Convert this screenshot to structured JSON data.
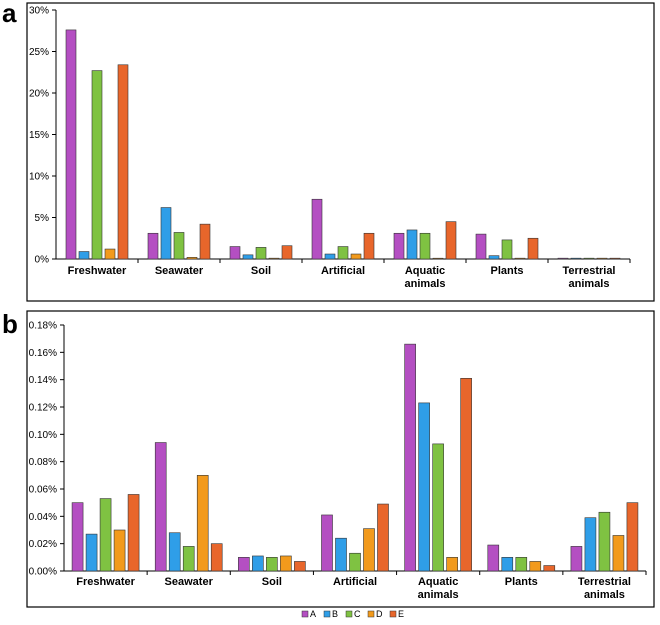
{
  "chart_data": [
    {
      "panel": "a",
      "type": "bar",
      "categories": [
        [
          "Freshwater"
        ],
        [
          "Seawater"
        ],
        [
          "Soil"
        ],
        [
          "Artificial"
        ],
        [
          "Aquatic",
          "animals"
        ],
        [
          "Plants"
        ],
        [
          "Terrestrial",
          "animals"
        ]
      ],
      "series": [
        {
          "name": "A",
          "values": [
            27.6,
            3.1,
            1.5,
            7.2,
            3.1,
            3.0,
            0.1
          ]
        },
        {
          "name": "B",
          "values": [
            0.9,
            6.2,
            0.5,
            0.6,
            3.5,
            0.4,
            0.1
          ]
        },
        {
          "name": "C",
          "values": [
            22.7,
            3.2,
            1.4,
            1.5,
            3.1,
            2.3,
            0.1
          ]
        },
        {
          "name": "D",
          "values": [
            1.2,
            0.2,
            0.1,
            0.6,
            0.0,
            0.1,
            0.1
          ]
        },
        {
          "name": "E",
          "values": [
            23.4,
            4.2,
            1.6,
            3.1,
            4.5,
            2.5,
            0.1
          ]
        }
      ],
      "ylim": [
        0,
        30
      ],
      "yticks": [
        0,
        5,
        10,
        15,
        20,
        25,
        30
      ],
      "ytick_labels": [
        "0%",
        "5%",
        "10%",
        "15%",
        "20%",
        "25%",
        "30%"
      ]
    },
    {
      "panel": "b",
      "type": "bar",
      "categories": [
        [
          "Freshwater"
        ],
        [
          "Seawater"
        ],
        [
          "Soil"
        ],
        [
          "Artificial"
        ],
        [
          "Aquatic",
          "animals"
        ],
        [
          "Plants"
        ],
        [
          "Terrestrial",
          "animals"
        ]
      ],
      "series": [
        {
          "name": "A",
          "values": [
            0.05,
            0.094,
            0.01,
            0.041,
            0.166,
            0.019,
            0.018
          ]
        },
        {
          "name": "B",
          "values": [
            0.027,
            0.028,
            0.011,
            0.024,
            0.123,
            0.01,
            0.039
          ]
        },
        {
          "name": "C",
          "values": [
            0.053,
            0.018,
            0.01,
            0.013,
            0.093,
            0.01,
            0.043
          ]
        },
        {
          "name": "D",
          "values": [
            0.03,
            0.07,
            0.011,
            0.031,
            0.01,
            0.007,
            0.026
          ]
        },
        {
          "name": "E",
          "values": [
            0.056,
            0.02,
            0.007,
            0.049,
            0.141,
            0.004,
            0.05
          ]
        }
      ],
      "ylim": [
        0,
        0.18
      ],
      "yticks": [
        0,
        0.02,
        0.04,
        0.06,
        0.08,
        0.1,
        0.12,
        0.14,
        0.16,
        0.18
      ],
      "ytick_labels": [
        "0.00%",
        "0.02%",
        "0.04%",
        "0.06%",
        "0.08%",
        "0.10%",
        "0.12%",
        "0.14%",
        "0.16%",
        "0.18%"
      ]
    }
  ],
  "legend": [
    {
      "label": "A",
      "color": "#b44fc2"
    },
    {
      "label": "B",
      "color": "#2f9ee8"
    },
    {
      "label": "C",
      "color": "#7fc242"
    },
    {
      "label": "D",
      "color": "#f29a1c"
    },
    {
      "label": "E",
      "color": "#e8662b"
    }
  ]
}
